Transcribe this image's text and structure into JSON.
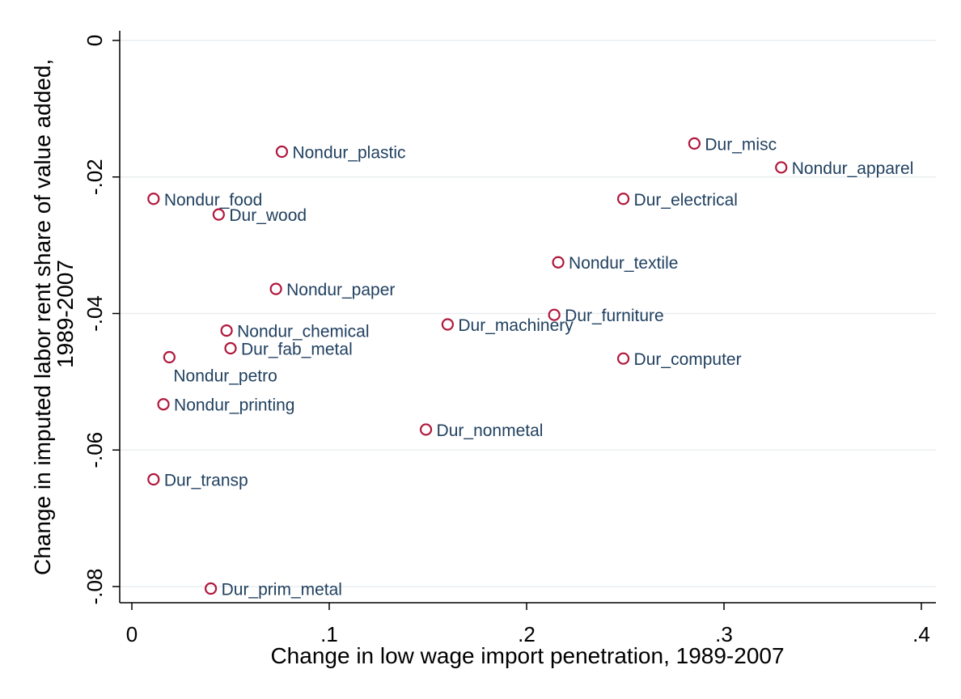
{
  "chart_data": {
    "type": "scatter",
    "title": "",
    "xlabel": "Change in low wage import penetration, 1989-2007",
    "ylabel_lines": [
      "Change in imputed labor rent share of value added,",
      "1989-2007"
    ],
    "xlim": [
      0,
      0.4
    ],
    "ylim": [
      -0.08,
      0
    ],
    "x_ticks": [
      {
        "value": 0,
        "label": "0"
      },
      {
        "value": 0.1,
        "label": ".1"
      },
      {
        "value": 0.2,
        "label": ".2"
      },
      {
        "value": 0.3,
        "label": ".3"
      },
      {
        "value": 0.4,
        "label": ".4"
      }
    ],
    "y_ticks": [
      {
        "value": 0,
        "label": "0"
      },
      {
        "value": -0.02,
        "label": "-.02"
      },
      {
        "value": -0.04,
        "label": "-.04"
      },
      {
        "value": -0.06,
        "label": "-.06"
      },
      {
        "value": -0.08,
        "label": "-.08"
      }
    ],
    "grid": "horizontal",
    "legend": "none",
    "marker_color": "#b0173c",
    "label_color": "#1f3f5f",
    "points": [
      {
        "label": "Nondur_plastic",
        "x": 0.076,
        "y": -0.0163
      },
      {
        "label": "Dur_misc",
        "x": 0.285,
        "y": -0.0151
      },
      {
        "label": "Nondur_apparel",
        "x": 0.329,
        "y": -0.0186
      },
      {
        "label": "Nondur_food",
        "x": 0.011,
        "y": -0.0232
      },
      {
        "label": "Dur_electrical",
        "x": 0.249,
        "y": -0.0232
      },
      {
        "label": "Dur_wood",
        "x": 0.044,
        "y": -0.0255
      },
      {
        "label": "Nondur_textile",
        "x": 0.216,
        "y": -0.0325
      },
      {
        "label": "Nondur_paper",
        "x": 0.073,
        "y": -0.0364
      },
      {
        "label": "Dur_furniture",
        "x": 0.214,
        "y": -0.0402
      },
      {
        "label": "Dur_machinery",
        "x": 0.16,
        "y": -0.0416
      },
      {
        "label": "Nondur_chemical",
        "x": 0.048,
        "y": -0.0425
      },
      {
        "label": "Dur_fab_metal",
        "x": 0.05,
        "y": -0.0451
      },
      {
        "label": "Nondur_petro",
        "x": 0.019,
        "y": -0.0464
      },
      {
        "label": "Dur_computer",
        "x": 0.249,
        "y": -0.0466
      },
      {
        "label": "Nondur_printing",
        "x": 0.016,
        "y": -0.0533
      },
      {
        "label": "Dur_nonmetal",
        "x": 0.149,
        "y": -0.057
      },
      {
        "label": "Dur_transp",
        "x": 0.011,
        "y": -0.0643
      },
      {
        "label": "Dur_prim_metal",
        "x": 0.04,
        "y": -0.0803
      }
    ]
  }
}
